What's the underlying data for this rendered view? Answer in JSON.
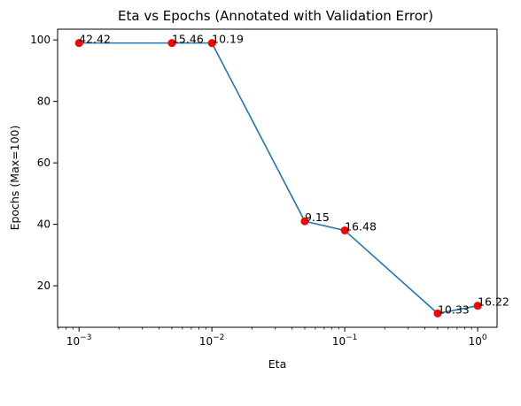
{
  "chart_data": {
    "type": "line",
    "title": "Eta vs Epochs (Annotated with Validation Error)",
    "xlabel": "Eta",
    "ylabel": "Epochs (Max=100)",
    "xscale": "log",
    "xlim": [
      0.00069,
      1.4
    ],
    "ylim": [
      6.5,
      103.5
    ],
    "grid": false,
    "x_ticks": [
      {
        "value": 0.001,
        "base": "10",
        "exp": "−3"
      },
      {
        "value": 0.01,
        "base": "10",
        "exp": "−2"
      },
      {
        "value": 0.1,
        "base": "10",
        "exp": "−1"
      },
      {
        "value": 1,
        "base": "10",
        "exp": "0"
      }
    ],
    "y_ticks": [
      20,
      40,
      60,
      80,
      100
    ],
    "series": [
      {
        "line_color": "#1f77b4",
        "marker_color": "#ff0000",
        "points": [
          {
            "x": 0.001,
            "y": 99,
            "label": "42.42"
          },
          {
            "x": 0.005,
            "y": 99,
            "label": "15.46"
          },
          {
            "x": 0.01,
            "y": 99,
            "label": "10.19"
          },
          {
            "x": 0.05,
            "y": 41,
            "label": "9.15"
          },
          {
            "x": 0.1,
            "y": 38,
            "label": "16.48"
          },
          {
            "x": 0.5,
            "y": 11,
            "label": "10.33"
          },
          {
            "x": 1.0,
            "y": 13.5,
            "label": "16.22"
          }
        ]
      }
    ]
  }
}
